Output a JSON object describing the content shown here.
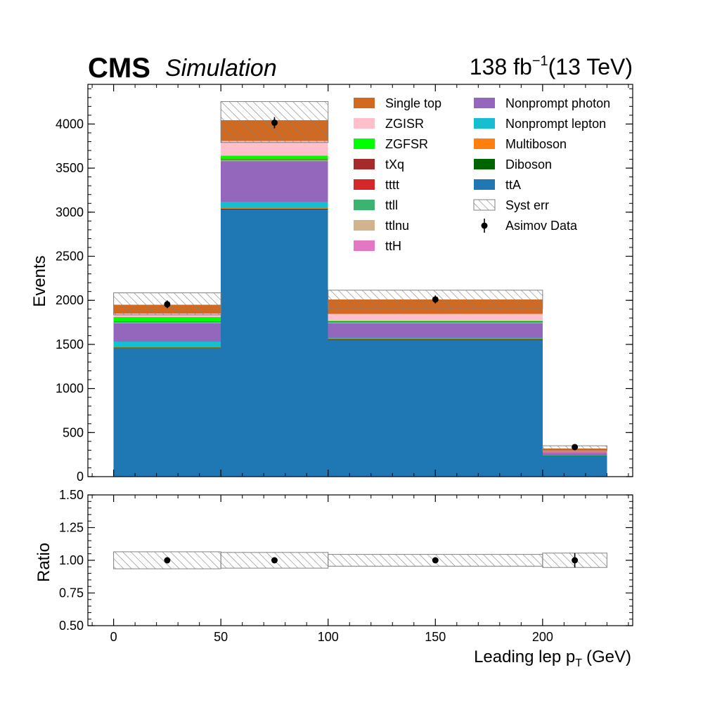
{
  "header": {
    "experiment": "CMS",
    "status": "Simulation",
    "lumi_value": "138 fb",
    "lumi_exponent": "−1",
    "energy": "(13 TeV)"
  },
  "chart_data": {
    "type": "bar",
    "stacked": true,
    "bin_edges": [
      0,
      50,
      100,
      200,
      230
    ],
    "xlabel_main": "Leading lep p",
    "xlabel_sub": "T",
    "xlabel_unit": "(GeV)",
    "ylabel": "Events",
    "ratio_ylabel": "Ratio",
    "xlim": [
      -12,
      242
    ],
    "ylim": [
      0,
      4450
    ],
    "ratio_ylim": [
      0.5,
      1.5
    ],
    "x_ticks": [
      "0",
      "50",
      "100",
      "150",
      "200"
    ],
    "y_ticks": [
      "0",
      "500",
      "1000",
      "1500",
      "2000",
      "2500",
      "3000",
      "3500",
      "4000"
    ],
    "ratio_y_ticks": [
      "0.50",
      "0.75",
      "1.00",
      "1.25",
      "1.50"
    ],
    "legend_position": "top-right",
    "series": [
      {
        "name": "ttA",
        "color": "#1f77b4",
        "values": [
          1460,
          3030,
          1550,
          232
        ]
      },
      {
        "name": "Diboson",
        "color": "#006400",
        "values": [
          5,
          10,
          8,
          3
        ]
      },
      {
        "name": "Multiboson",
        "color": "#ff7f0e",
        "values": [
          3,
          5,
          4,
          2
        ]
      },
      {
        "name": "Nonprompt lepton",
        "color": "#17becf",
        "values": [
          65,
          75,
          15,
          5
        ]
      },
      {
        "name": "Nonprompt photon",
        "color": "#9467bd",
        "values": [
          205,
          455,
          160,
          25
        ]
      },
      {
        "name": "ttH",
        "color": "#e377c2",
        "values": [
          5,
          5,
          4,
          8
        ]
      },
      {
        "name": "ttlnu",
        "color": "#d2b48c",
        "values": [
          5,
          5,
          4,
          2
        ]
      },
      {
        "name": "ttll",
        "color": "#3cb371",
        "values": [
          8,
          10,
          12,
          3
        ]
      },
      {
        "name": "tttt",
        "color": "#d62728",
        "values": [
          2,
          2,
          2,
          1
        ]
      },
      {
        "name": "tXq",
        "color": "#a52a2a",
        "values": [
          2,
          3,
          2,
          1
        ]
      },
      {
        "name": "ZGFSR",
        "color": "#00ff00",
        "values": [
          50,
          40,
          5,
          2
        ]
      },
      {
        "name": "ZGISR",
        "color": "#ffc0cb",
        "values": [
          40,
          170,
          80,
          8
        ]
      },
      {
        "name": "Single top",
        "color": "#d2691e",
        "values": [
          100,
          235,
          164,
          28
        ]
      }
    ],
    "syst_err": {
      "name": "Syst err",
      "up": [
        2085,
        4255,
        2115,
        350
      ],
      "down": [
        1835,
        3790,
        1905,
        295
      ],
      "ratio_up": [
        1.065,
        1.06,
        1.045,
        1.055
      ],
      "ratio_down": [
        0.935,
        0.94,
        0.955,
        0.945
      ]
    },
    "data": {
      "name": "Asimov Data",
      "x": [
        25,
        75,
        150,
        215
      ],
      "y": [
        1955,
        4015,
        2010,
        335
      ],
      "yerr": [
        44,
        63,
        45,
        18
      ],
      "ratio": [
        1.0,
        1.0,
        1.0,
        1.0
      ],
      "ratio_err": [
        0.022,
        0.016,
        0.022,
        0.055
      ]
    },
    "legend_order": [
      "Single top",
      "ZGISR",
      "ZGFSR",
      "tXq",
      "tttt",
      "ttll",
      "ttlnu",
      "ttH",
      "Nonprompt photon",
      "Nonprompt lepton",
      "Multiboson",
      "Diboson",
      "ttA",
      "Syst err",
      "Asimov Data"
    ]
  }
}
